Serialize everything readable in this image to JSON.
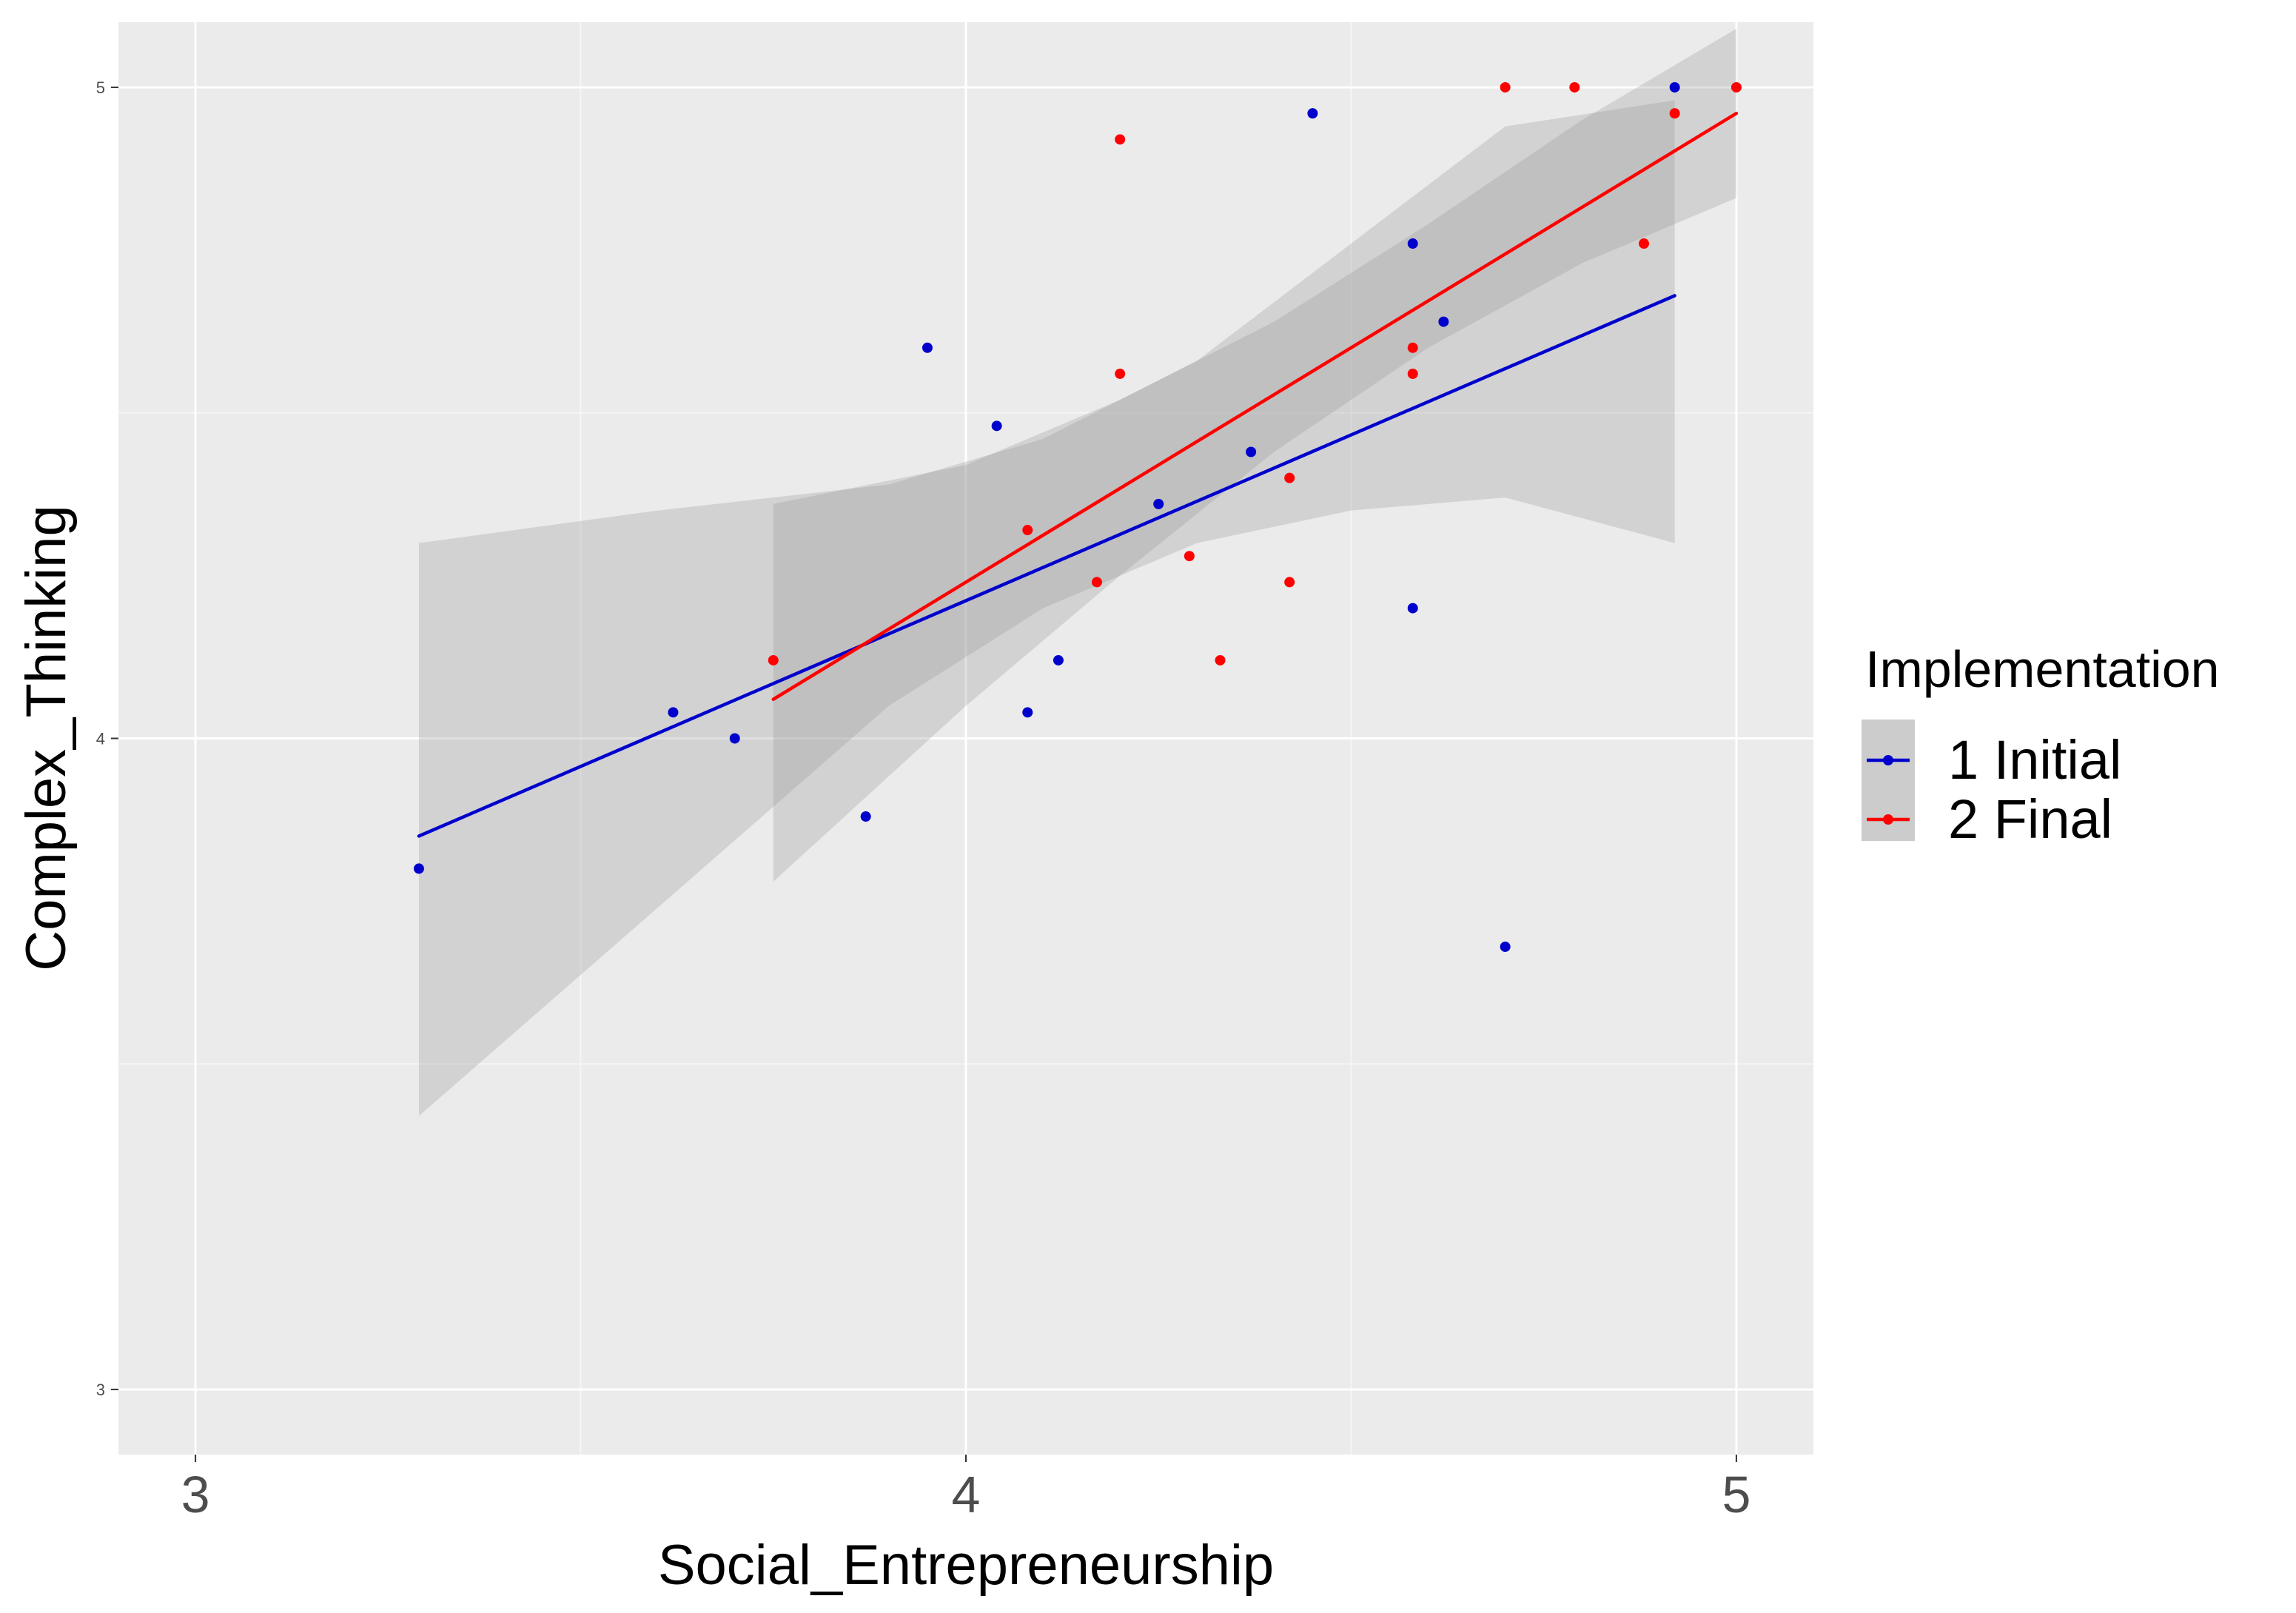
{
  "chart_data": {
    "type": "scatter",
    "title": "",
    "xlabel": "Social_Entrepreneurship",
    "ylabel": "Complex_Thinking",
    "xlim": [
      2.9,
      5.1
    ],
    "ylim": [
      2.9,
      5.1
    ],
    "x_ticks": [
      3,
      4,
      5
    ],
    "y_ticks": [
      3,
      4,
      5
    ],
    "x_tick_labels": [
      "3",
      "4",
      "5"
    ],
    "y_tick_labels": [
      "3",
      "4",
      "5"
    ],
    "grid": true,
    "legend": {
      "title": "Implementation",
      "position": "right"
    },
    "series": [
      {
        "name": "1 Initial",
        "color": "#0000cc",
        "points": [
          [
            3.29,
            3.8
          ],
          [
            3.62,
            4.04
          ],
          [
            3.7,
            4.0
          ],
          [
            3.87,
            3.88
          ],
          [
            3.95,
            4.6
          ],
          [
            4.04,
            4.48
          ],
          [
            4.08,
            4.04
          ],
          [
            4.12,
            4.12
          ],
          [
            4.25,
            4.36
          ],
          [
            4.37,
            4.44
          ],
          [
            4.45,
            4.96
          ],
          [
            4.58,
            4.2
          ],
          [
            4.58,
            4.76
          ],
          [
            4.62,
            4.64
          ],
          [
            4.7,
            3.68
          ],
          [
            4.92,
            5.0
          ]
        ],
        "fit": {
          "x": [
            3.29,
            4.92
          ],
          "y": [
            3.85,
            4.68
          ]
        },
        "band": {
          "x": [
            3.29,
            3.6,
            3.9,
            4.1,
            4.3,
            4.5,
            4.7,
            4.92
          ],
          "lower": [
            3.42,
            3.74,
            4.05,
            4.2,
            4.3,
            4.35,
            4.37,
            4.3
          ],
          "upper": [
            4.3,
            4.35,
            4.39,
            4.46,
            4.58,
            4.76,
            4.94,
            4.98
          ]
        }
      },
      {
        "name": "2 Final",
        "color": "#ff0000",
        "points": [
          [
            3.75,
            4.12
          ],
          [
            4.08,
            4.32
          ],
          [
            4.17,
            4.24
          ],
          [
            4.2,
            4.92
          ],
          [
            4.2,
            4.56
          ],
          [
            4.29,
            4.28
          ],
          [
            4.33,
            4.12
          ],
          [
            4.42,
            4.24
          ],
          [
            4.42,
            4.4
          ],
          [
            4.58,
            4.6
          ],
          [
            4.58,
            4.56
          ],
          [
            4.7,
            5.0
          ],
          [
            4.79,
            5.0
          ],
          [
            4.88,
            4.76
          ],
          [
            4.92,
            4.96
          ],
          [
            5.0,
            5.0
          ]
        ],
        "fit": {
          "x": [
            3.75,
            5.0
          ],
          "y": [
            4.06,
            4.96
          ]
        },
        "band": {
          "x": [
            3.75,
            4.0,
            4.2,
            4.4,
            4.6,
            4.8,
            5.0
          ],
          "lower": [
            3.78,
            4.05,
            4.25,
            4.44,
            4.6,
            4.73,
            4.83
          ],
          "upper": [
            4.36,
            4.42,
            4.52,
            4.64,
            4.79,
            4.95,
            5.09
          ]
        }
      }
    ]
  }
}
